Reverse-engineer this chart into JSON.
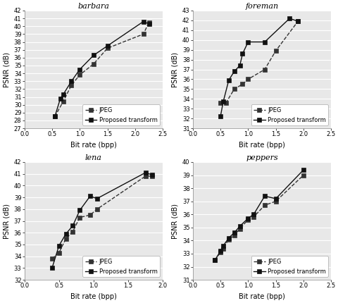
{
  "subplots": [
    {
      "title": "barbara",
      "xlabel": "Bit rate (bpp)",
      "ylabel": "PSNR (dB)",
      "xlim": [
        0,
        2.5
      ],
      "ylim": [
        27,
        42
      ],
      "yticks": [
        27,
        28,
        29,
        30,
        31,
        32,
        33,
        34,
        35,
        36,
        37,
        38,
        39,
        40,
        41,
        42
      ],
      "xticks": [
        0,
        0.5,
        1,
        1.5,
        2,
        2.5
      ],
      "jpeg_x": [
        0.55,
        0.7,
        0.85,
        1.0,
        1.25,
        1.5,
        2.15,
        2.25
      ],
      "jpeg_y": [
        28.5,
        30.4,
        32.5,
        33.8,
        35.2,
        37.2,
        39.0,
        40.5
      ],
      "proposed_x": [
        0.55,
        0.65,
        0.7,
        0.85,
        1.0,
        1.25,
        1.5,
        2.15,
        2.25
      ],
      "proposed_y": [
        28.5,
        30.8,
        31.3,
        33.0,
        34.5,
        36.3,
        37.5,
        40.6,
        40.3
      ]
    },
    {
      "title": "foreman",
      "xlabel": "Bit rate (bpp)",
      "ylabel": "PSNR (dB)",
      "xlim": [
        0,
        2.5
      ],
      "ylim": [
        31,
        43
      ],
      "yticks": [
        31,
        32,
        33,
        34,
        35,
        36,
        37,
        38,
        39,
        40,
        41,
        42,
        43
      ],
      "xticks": [
        0,
        0.5,
        1,
        1.5,
        2,
        2.5
      ],
      "jpeg_x": [
        0.5,
        0.6,
        0.75,
        0.9,
        1.0,
        1.3,
        1.5,
        1.9
      ],
      "jpeg_y": [
        33.6,
        33.6,
        35.0,
        35.5,
        36.0,
        37.0,
        38.9,
        41.9
      ],
      "proposed_x": [
        0.5,
        0.55,
        0.65,
        0.75,
        0.85,
        0.9,
        1.0,
        1.3,
        1.75,
        1.9
      ],
      "proposed_y": [
        32.2,
        33.7,
        35.9,
        36.8,
        37.4,
        38.6,
        39.8,
        39.8,
        42.2,
        41.9
      ]
    },
    {
      "title": "lena",
      "xlabel": "Bit rate (bpp)",
      "ylabel": "PSNR (dB)",
      "xlim": [
        0,
        2.0
      ],
      "ylim": [
        32,
        42
      ],
      "yticks": [
        32,
        33,
        34,
        35,
        36,
        37,
        38,
        39,
        40,
        41,
        42
      ],
      "xticks": [
        0,
        0.5,
        1,
        1.5,
        2
      ],
      "jpeg_x": [
        0.4,
        0.5,
        0.6,
        0.7,
        0.8,
        0.95,
        1.05,
        1.75,
        1.85
      ],
      "jpeg_y": [
        33.8,
        34.3,
        35.5,
        36.1,
        37.3,
        37.5,
        38.0,
        40.8,
        40.8
      ],
      "proposed_x": [
        0.4,
        0.5,
        0.6,
        0.7,
        0.8,
        0.95,
        1.05,
        1.75,
        1.85
      ],
      "proposed_y": [
        33.0,
        34.9,
        35.9,
        36.6,
        37.9,
        39.1,
        38.9,
        41.1,
        40.9
      ]
    },
    {
      "title": "peppers",
      "xlabel": "Bit rate (bpp)",
      "ylabel": "PSNR (dB)",
      "xlim": [
        0,
        2.5
      ],
      "ylim": [
        31,
        40
      ],
      "yticks": [
        31,
        32,
        33,
        34,
        35,
        36,
        37,
        38,
        39,
        40
      ],
      "xticks": [
        0,
        0.5,
        1,
        1.5,
        2,
        2.5
      ],
      "jpeg_x": [
        0.4,
        0.5,
        0.55,
        0.65,
        0.75,
        0.85,
        1.0,
        1.1,
        1.3,
        1.5,
        2.0
      ],
      "jpeg_y": [
        32.5,
        33.1,
        33.4,
        34.1,
        34.4,
        34.9,
        35.6,
        35.8,
        36.7,
        37.0,
        39.0
      ],
      "proposed_x": [
        0.4,
        0.5,
        0.55,
        0.65,
        0.75,
        0.85,
        1.0,
        1.1,
        1.3,
        1.5,
        2.0
      ],
      "proposed_y": [
        32.5,
        33.2,
        33.6,
        34.2,
        34.6,
        35.1,
        35.7,
        36.0,
        37.4,
        37.2,
        39.4
      ]
    }
  ],
  "jpeg_color": "#333333",
  "proposed_color": "#111111",
  "marker": "s",
  "marker_size": 4,
  "line_width": 1.0,
  "bg_color": "#e8e8e8",
  "grid_color": "#ffffff",
  "legend_jpeg": "JPEG",
  "legend_proposed": "Proposed transform",
  "font_size_title": 8,
  "font_size_axis": 7,
  "font_size_tick": 6,
  "font_size_legend": 6
}
